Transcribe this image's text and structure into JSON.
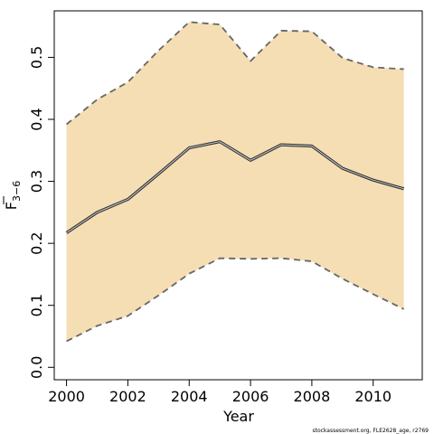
{
  "chart_data": {
    "type": "area",
    "xlabel": "Year",
    "ylabel": {
      "base": "F",
      "subscript": "3−6"
    },
    "xlim": [
      1999.6,
      2011.6
    ],
    "ylim": [
      -0.02,
      0.575
    ],
    "x_ticks": [
      2000,
      2002,
      2004,
      2006,
      2008,
      2010
    ],
    "y_ticks": [
      0.0,
      0.1,
      0.2,
      0.3,
      0.4,
      0.5
    ],
    "y_tick_labels": [
      "0.0",
      "0.1",
      "0.2",
      "0.3",
      "0.4",
      "0.5"
    ],
    "grid": false,
    "legend": "none",
    "x": [
      2000,
      2001,
      2002,
      2003,
      2004,
      2005,
      2006,
      2007,
      2008,
      2009,
      2010,
      2011
    ],
    "series": [
      {
        "role": "estimate",
        "values": [
          0.217,
          0.25,
          0.271,
          0.312,
          0.354,
          0.364,
          0.334,
          0.359,
          0.357,
          0.321,
          0.302,
          0.288
        ]
      },
      {
        "role": "upper",
        "values": [
          0.392,
          0.432,
          0.46,
          0.511,
          0.557,
          0.553,
          0.494,
          0.543,
          0.542,
          0.499,
          0.484,
          0.481
        ]
      },
      {
        "role": "lower",
        "values": [
          0.042,
          0.067,
          0.083,
          0.116,
          0.151,
          0.176,
          0.175,
          0.176,
          0.171,
          0.143,
          0.118,
          0.094
        ]
      }
    ],
    "colors": {
      "band_fill": "#F5DEB3",
      "band_edge": "#666666",
      "estimate_outer": "#333333",
      "estimate_inner": "#cccccc",
      "axis": "#000000"
    },
    "footer_note": "stockassessment.org, FLE2628_age, r2769"
  }
}
